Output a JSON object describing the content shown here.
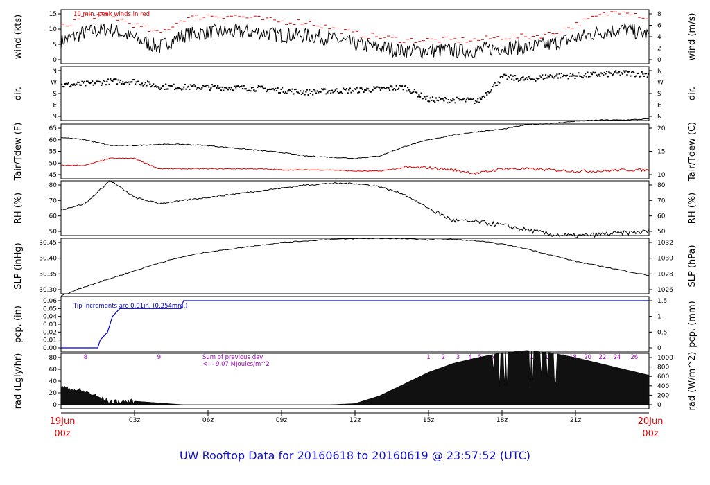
{
  "title": "UW Rooftop Data for 20160618  to  20160619 @ 23:57:52  (UTC)",
  "time_axis": {
    "ticks": [
      "03z",
      "06z",
      "09z",
      "12z",
      "15z",
      "18z",
      "21z"
    ],
    "start_date": "19Jun",
    "start_hour": "00z",
    "end_date": "20Jun",
    "end_hour": "00z"
  },
  "colors": {
    "frame": "#000000",
    "red": "#e00000",
    "blue": "#0000d0",
    "purple": "#a000c0"
  },
  "panels": [
    {
      "id": "wind",
      "left_label": "wind (kts)",
      "right_label": "wind (m/s)",
      "left_ticks": [
        "0",
        "5",
        "10",
        "15"
      ],
      "right_ticks": [
        "0",
        "2",
        "4",
        "6",
        "8"
      ],
      "annotation": "10 min. peak winds in red"
    },
    {
      "id": "dir",
      "left_label": "dir.",
      "right_label": "dir.",
      "left_ticks": [
        "N",
        "E",
        "S",
        "W",
        "N"
      ],
      "right_ticks": [
        "N",
        "E",
        "S",
        "W",
        "N"
      ]
    },
    {
      "id": "temp",
      "left_label": "Tair/Tdew (F)",
      "right_label": "Tair/Tdew (C)",
      "left_ticks": [
        "45",
        "50",
        "55",
        "60",
        "65"
      ],
      "right_ticks": [
        "10",
        "15",
        "20"
      ]
    },
    {
      "id": "rh",
      "left_label": "RH (%)",
      "right_label": "RH (%)",
      "left_ticks": [
        "50",
        "60",
        "70",
        "80"
      ],
      "right_ticks": [
        "50",
        "60",
        "70",
        "80"
      ]
    },
    {
      "id": "slp",
      "left_label": "SLP (inHg)",
      "right_label": "SLP (hPa)",
      "left_ticks": [
        "30.30",
        "30.35",
        "30.40",
        "30.45"
      ],
      "right_ticks": [
        "1026",
        "1028",
        "1030",
        "1032"
      ]
    },
    {
      "id": "pcp",
      "left_label": "pcp. (in)",
      "right_label": "pcp. (mm)",
      "left_ticks": [
        "0.00",
        "0.01",
        "0.02",
        "0.03",
        "0.04",
        "0.05",
        "0.06"
      ],
      "right_ticks": [
        "0",
        "0.5",
        "1",
        "1.5"
      ],
      "annotation": "Tip increments are 0.01in. (0.254mm.)"
    },
    {
      "id": "rad",
      "left_label": "rad (Lgly/hr)",
      "right_label": "rad (W/m^2)",
      "left_ticks": [
        "0",
        "20",
        "40",
        "60",
        "80"
      ],
      "right_ticks": [
        "0",
        "200",
        "400",
        "600",
        "800",
        "1000"
      ],
      "annotation_1": "Sum of previous day",
      "annotation_2": "<--- 9.07 MJoules/m^2"
    }
  ],
  "hourly_labels": [
    "8",
    "9",
    "1",
    "2",
    "3",
    "4",
    "5",
    "6",
    "8",
    "10",
    "12",
    "14",
    "16",
    "18",
    "20",
    "22",
    "24",
    "26"
  ],
  "chart_data": [
    {
      "type": "line",
      "title": "",
      "ylabel": "wind (kts)",
      "ylim": [
        0,
        17
      ],
      "x": [
        0,
        1,
        2,
        3,
        4,
        5,
        6,
        7,
        8,
        9,
        10,
        11,
        12,
        13,
        14,
        15,
        16,
        17,
        18,
        19,
        20,
        21,
        22,
        23,
        24
      ],
      "series": [
        {
          "values": [
            6,
            9,
            10,
            7,
            4,
            8,
            9,
            9,
            9,
            8,
            8,
            7,
            5,
            4,
            3,
            3,
            3,
            3,
            4,
            4,
            5,
            7,
            9,
            10,
            8
          ]
        },
        {
          "name": "10 min. peak winds",
          "values": [
            10,
            14,
            14,
            11,
            8,
            13,
            14,
            14,
            13,
            12,
            12,
            10,
            8,
            7,
            6,
            6,
            6,
            6,
            7,
            7,
            8,
            11,
            14,
            16,
            13
          ]
        }
      ]
    },
    {
      "type": "scatter",
      "title": "",
      "ylabel": "dir.",
      "yticks": [
        "N",
        "E",
        "S",
        "W",
        "N"
      ],
      "ylim": [
        0,
        360
      ],
      "x": [
        0,
        1,
        2,
        3,
        4,
        5,
        6,
        7,
        8,
        9,
        10,
        11,
        12,
        13,
        14,
        15,
        16,
        17,
        18,
        19,
        20,
        21,
        22,
        23,
        24
      ],
      "series": [
        {
          "values": [
            245,
            255,
            275,
            275,
            235,
            230,
            230,
            225,
            220,
            205,
            190,
            200,
            205,
            215,
            230,
            130,
            130,
            120,
            310,
            290,
            320,
            320,
            330,
            340,
            330
          ]
        }
      ]
    },
    {
      "type": "line",
      "title": "",
      "ylabel": "Tair/Tdew (F)",
      "ylim": [
        43,
        68
      ],
      "x": [
        0,
        1,
        2,
        3,
        4,
        5,
        6,
        7,
        8,
        9,
        10,
        11,
        12,
        13,
        14,
        15,
        16,
        17,
        18,
        19,
        20,
        21,
        22,
        23,
        24
      ],
      "series": [
        {
          "name": "Tair",
          "values": [
            61,
            60,
            57.5,
            57.5,
            58,
            58,
            57.5,
            56.5,
            55.5,
            54.5,
            53,
            52.5,
            52,
            53,
            57,
            60,
            62,
            63.5,
            64.5,
            66.5,
            67,
            68,
            68.5,
            68.5,
            69
          ]
        },
        {
          "name": "Tdew",
          "values": [
            49,
            49,
            52,
            52,
            47.5,
            47.5,
            47.5,
            47.5,
            47.5,
            47,
            47,
            47,
            46.5,
            46.5,
            48,
            48,
            47,
            45.5,
            47.5,
            47.5,
            47,
            46.5,
            46.5,
            47,
            47
          ]
        }
      ]
    },
    {
      "type": "line",
      "title": "",
      "ylabel": "RH (%)",
      "ylim": [
        44,
        86
      ],
      "x": [
        0,
        1,
        2,
        3,
        4,
        5,
        6,
        7,
        8,
        9,
        10,
        11,
        12,
        13,
        14,
        15,
        16,
        17,
        18,
        19,
        20,
        21,
        22,
        23,
        24
      ],
      "series": [
        {
          "values": [
            64,
            68,
            83,
            72,
            68,
            70,
            72,
            74,
            76,
            78,
            80,
            81,
            81,
            79,
            74,
            65,
            57,
            56,
            54,
            51,
            48,
            47,
            48,
            49,
            50
          ]
        }
      ]
    },
    {
      "type": "line",
      "title": "",
      "ylabel": "SLP (inHg)",
      "ylim": [
        30.27,
        30.47
      ],
      "x": [
        0,
        1,
        2,
        3,
        4,
        5,
        6,
        7,
        8,
        9,
        10,
        11,
        12,
        13,
        14,
        15,
        16,
        17,
        18,
        19,
        20,
        21,
        22,
        23,
        24
      ],
      "series": [
        {
          "values": [
            30.28,
            30.31,
            30.335,
            30.36,
            30.385,
            30.405,
            30.42,
            30.43,
            30.44,
            30.45,
            30.455,
            30.46,
            30.462,
            30.463,
            30.462,
            30.458,
            30.46,
            30.455,
            30.445,
            30.43,
            30.41,
            30.39,
            30.375,
            30.36,
            30.345
          ]
        }
      ]
    },
    {
      "type": "line",
      "title": "",
      "ylabel": "pcp. (in)",
      "ylim": [
        0,
        0.06
      ],
      "x": [
        0,
        1.5,
        1.6,
        1.9,
        2.0,
        2.1,
        2.4,
        2.5,
        4.9,
        5.0,
        24
      ],
      "series": [
        {
          "values": [
            0,
            0,
            0.01,
            0.02,
            0.03,
            0.04,
            0.05,
            0.05,
            0.05,
            0.06,
            0.06
          ]
        }
      ]
    },
    {
      "type": "area",
      "title": "",
      "ylabel": "rad (Lgly/hr)",
      "ylim": [
        0,
        95
      ],
      "x": [
        0,
        1,
        2,
        3,
        4,
        5,
        6,
        7,
        8,
        9,
        10,
        11,
        12,
        13,
        14,
        15,
        16,
        17,
        18,
        19,
        20,
        21,
        22,
        23,
        24
      ],
      "series": [
        {
          "values": [
            30,
            22,
            5,
            6,
            3,
            0,
            0,
            0,
            0,
            0,
            0,
            0,
            2,
            15,
            35,
            55,
            70,
            80,
            88,
            92,
            88,
            80,
            70,
            60,
            50
          ]
        }
      ]
    }
  ]
}
